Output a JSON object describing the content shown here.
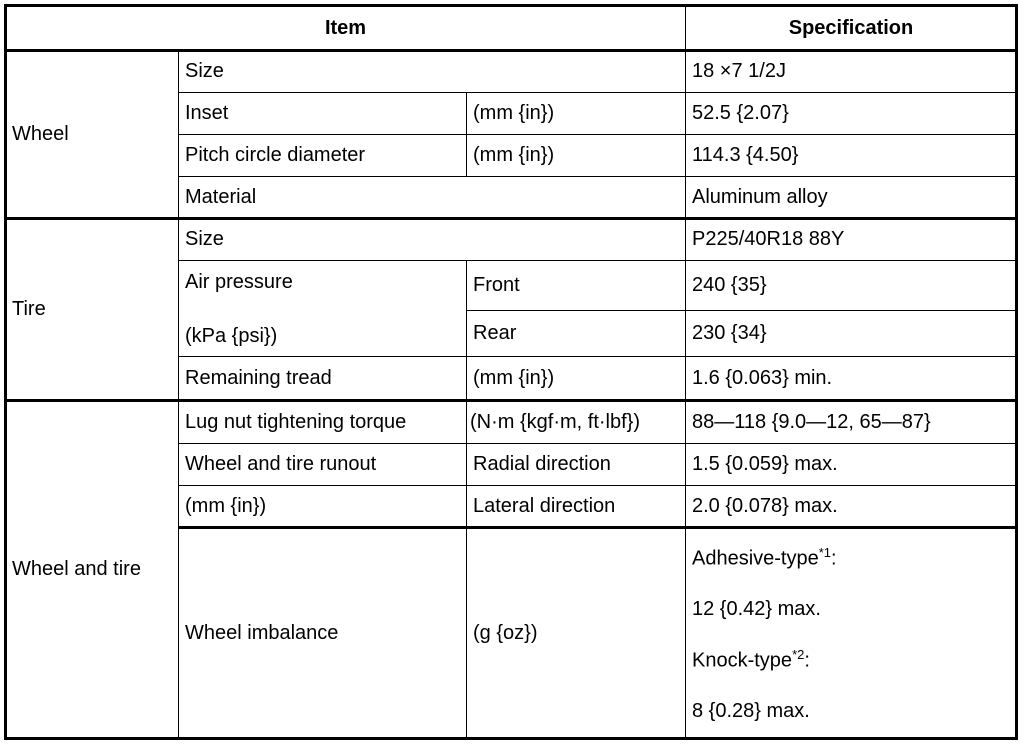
{
  "header": {
    "item": "Item",
    "specification": "Specification"
  },
  "wheel": {
    "group": "Wheel",
    "size": {
      "label": "Size",
      "spec": "18 ×7 1/2J"
    },
    "inset": {
      "label": "Inset",
      "unit": "(mm {in})",
      "spec": "52.5 {2.07}"
    },
    "pcd": {
      "label": "Pitch circle diameter",
      "unit": "(mm {in})",
      "spec": "114.3 {4.50}"
    },
    "material": {
      "label": "Material",
      "spec": "Aluminum alloy"
    }
  },
  "tire": {
    "group": "Tire",
    "size": {
      "label": "Size",
      "spec": "P225/40R18 88Y"
    },
    "air_pressure": {
      "label": "Air pressure",
      "unit": "(kPa {psi})",
      "front": {
        "label": "Front",
        "spec": "240 {35}"
      },
      "rear": {
        "label": "Rear",
        "spec": "230 {34}"
      }
    },
    "tread": {
      "label": "Remaining tread",
      "unit": "(mm {in})",
      "spec": "1.6 {0.063} min."
    }
  },
  "wheel_and_tire": {
    "group": "Wheel and tire",
    "lug": {
      "label": "Lug nut tightening torque",
      "unit": "(N·m {kgf·m, ft·lbf})",
      "spec": "88—118 {9.0—12, 65—87}"
    },
    "runout": {
      "label": "Wheel and tire runout",
      "unit": "(mm {in})",
      "radial": {
        "label": "Radial direction",
        "spec": "1.5 {0.059} max."
      },
      "lateral": {
        "label": "Lateral direction",
        "spec": "2.0 {0.078} max."
      }
    },
    "imbalance": {
      "label": "Wheel imbalance",
      "unit": "(g {oz})",
      "adhesive_label": "Adhesive-type",
      "adhesive_note": "*1",
      "adhesive_value": "12 {0.42} max.",
      "knock_label": "Knock-type",
      "knock_note": "*2",
      "knock_value": "8 {0.28} max.",
      "colon": ":"
    }
  }
}
